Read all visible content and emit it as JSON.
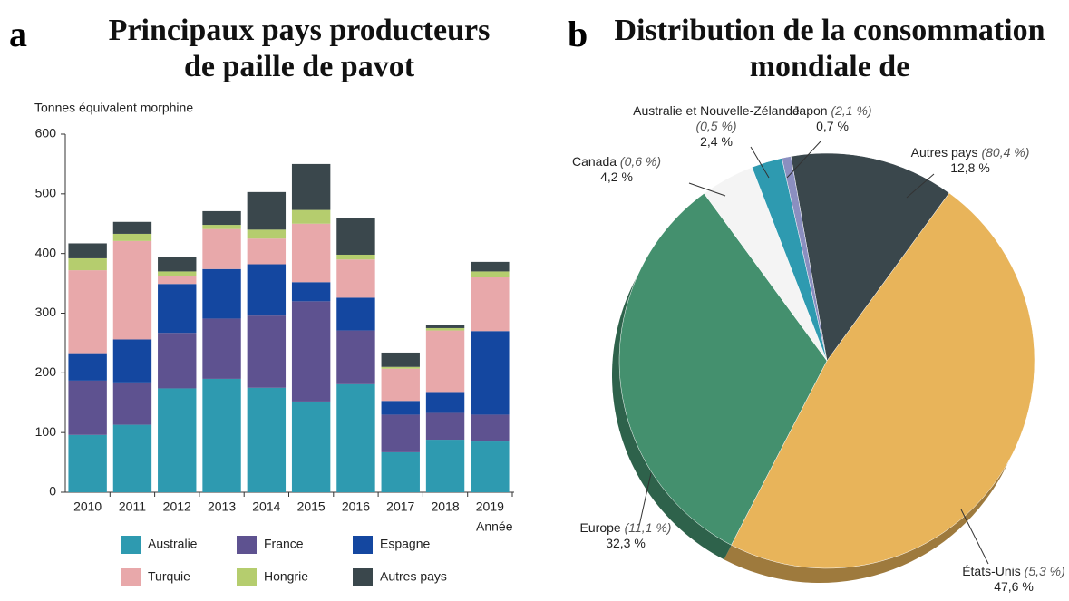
{
  "chart_data": [
    {
      "type": "bar",
      "stacked": true,
      "panel": "a",
      "title": "Principaux pays producteurs de paille de pavot",
      "y_label": "Tonnes équivalent morphine",
      "x_label": "Année",
      "categories": [
        "2010",
        "2011",
        "2012",
        "2013",
        "2014",
        "2015",
        "2016",
        "2017",
        "2018",
        "2019"
      ],
      "series": [
        {
          "name": "Australie",
          "color": "#2e9ab0",
          "values": [
            96,
            113,
            174,
            190,
            175,
            152,
            181,
            67,
            88,
            85
          ]
        },
        {
          "name": "France",
          "color": "#5e5290",
          "values": [
            91,
            71,
            93,
            101,
            121,
            168,
            90,
            63,
            45,
            45
          ]
        },
        {
          "name": "Espagne",
          "color": "#1447a0",
          "values": [
            46,
            72,
            82,
            83,
            86,
            32,
            55,
            23,
            35,
            140
          ]
        },
        {
          "name": "Turquie",
          "color": "#e8a8aa",
          "values": [
            139,
            165,
            13,
            67,
            43,
            98,
            64,
            54,
            103,
            90
          ]
        },
        {
          "name": "Hongrie",
          "color": "#b5cd6e",
          "values": [
            20,
            12,
            8,
            7,
            15,
            23,
            8,
            3,
            4,
            10
          ]
        },
        {
          "name": "Autres pays",
          "color": "#3a474c",
          "values": [
            25,
            20,
            24,
            23,
            63,
            77,
            62,
            24,
            6,
            16
          ]
        }
      ],
      "ylim": [
        0,
        600
      ],
      "yticks": [
        0,
        100,
        200,
        300,
        400,
        500,
        600
      ]
    },
    {
      "type": "pie",
      "panel": "b",
      "title": "Distribution de la consommation mondiale de",
      "categories": [
        "Autres pays",
        "États-Unis",
        "Europe",
        "Canada",
        "Australie et Nouvelle-Zélande",
        "Japon"
      ],
      "values": [
        12.8,
        47.6,
        32.3,
        4.2,
        2.4,
        0.7
      ],
      "value_labels": [
        "12,8 %",
        "47,6 %",
        "32,3 %",
        "4,2 %",
        "2,4 %",
        "0,7 %"
      ],
      "secondary_labels": [
        "(80,4 %)",
        "(5,3 %)",
        "(11,1 %)",
        "(0,6 %)",
        "(0,5 %)",
        "(2,1 %)"
      ],
      "colors": [
        "#3a474c",
        "#e8b45a",
        "#44906e",
        "#f4f4f4",
        "#2e9ab0",
        "#8b8fc0"
      ]
    }
  ]
}
